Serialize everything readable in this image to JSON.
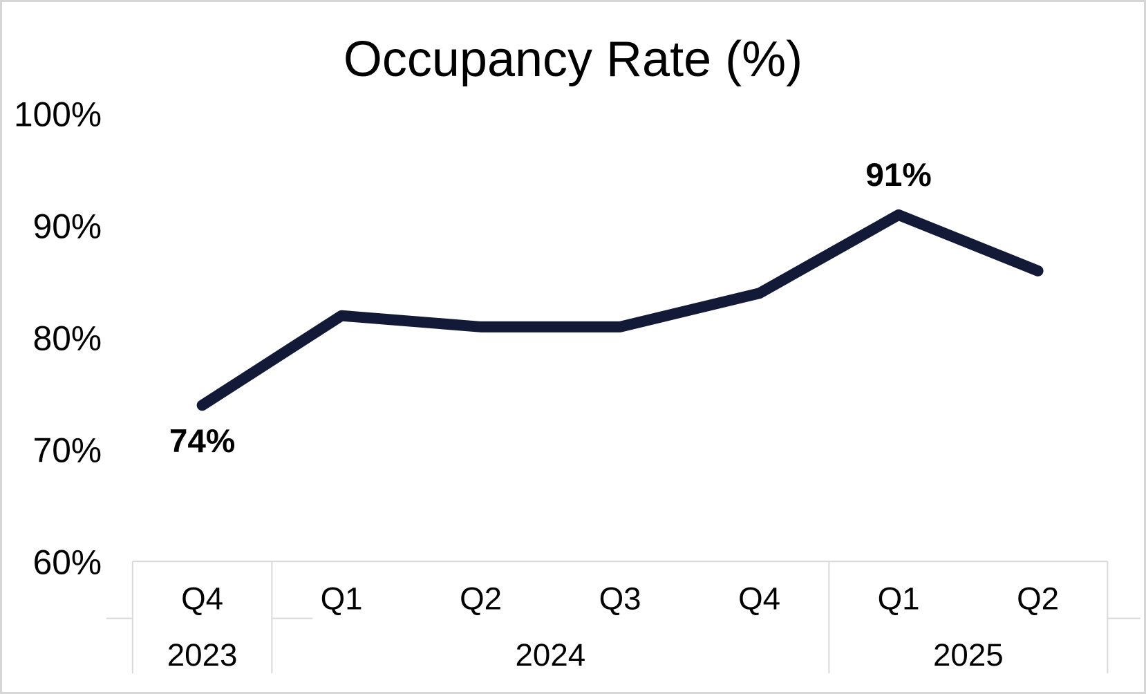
{
  "chart_data": {
    "type": "line",
    "title": "Occupancy Rate (%)",
    "categories": [
      "Q4",
      "Q1",
      "Q2",
      "Q3",
      "Q4",
      "Q1",
      "Q2"
    ],
    "year_groups": [
      {
        "label": "2023",
        "count": 1
      },
      {
        "label": "2024",
        "count": 4
      },
      {
        "label": "2025",
        "count": 2
      }
    ],
    "values": [
      74,
      82,
      81,
      81,
      84,
      91,
      86
    ],
    "data_labels": [
      {
        "index": 0,
        "text": "74%",
        "position": "below"
      },
      {
        "index": 5,
        "text": "91%",
        "position": "above"
      }
    ],
    "y_axis": {
      "tick_labels": [
        "100%",
        "90%",
        "80%",
        "70%",
        "60%"
      ],
      "tick_values": [
        100,
        90,
        80,
        70,
        60
      ],
      "min": 60,
      "max": 100
    },
    "xlabel": "",
    "ylabel": "",
    "grid": "off",
    "legend": "none",
    "line_color": "#121a38",
    "axis_line_color": "#d9d9d9",
    "label_color": "#000000"
  }
}
